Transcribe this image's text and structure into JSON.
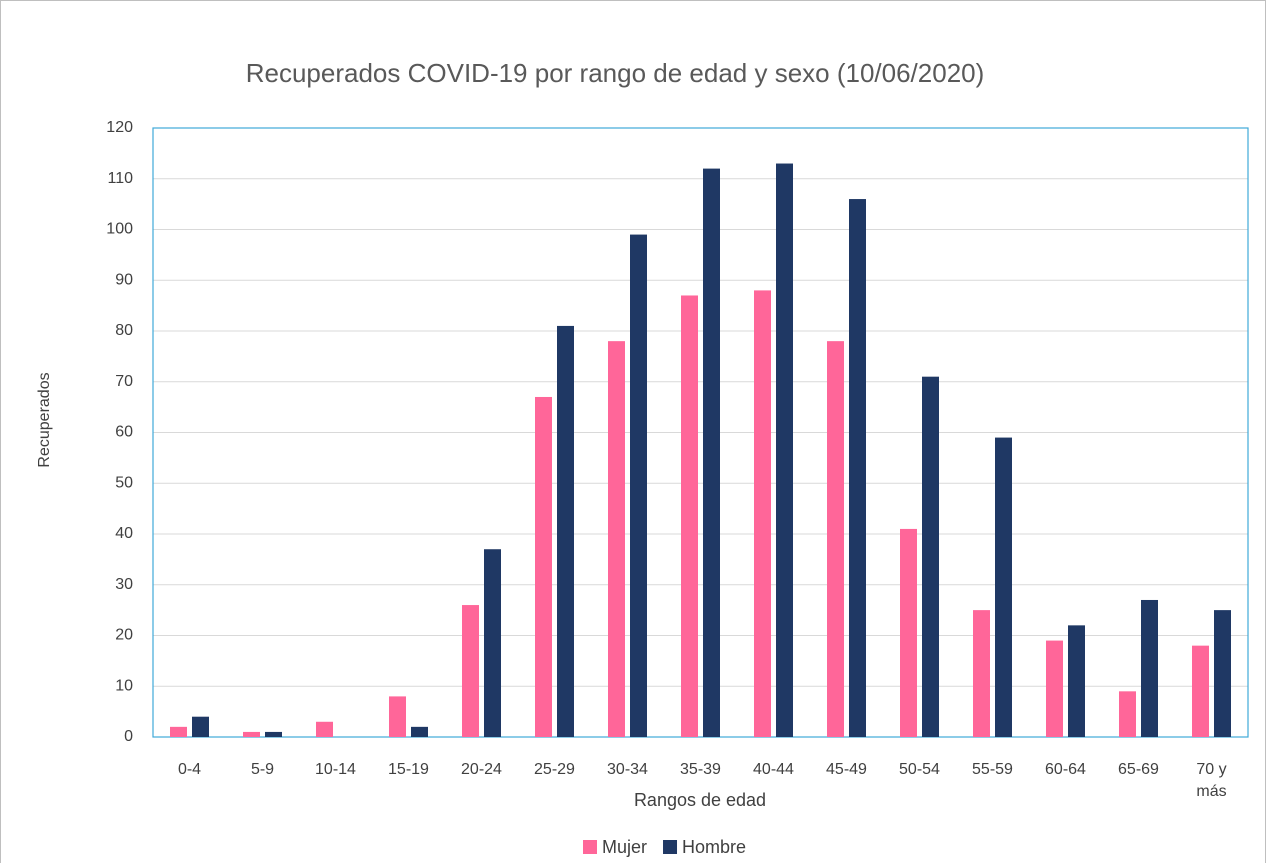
{
  "chart_data": {
    "type": "bar",
    "title": "Recuperados COVID-19 por rango de edad y sexo (10/06/2020)",
    "x_label": "Rangos de edad",
    "y_label": "Recuperados",
    "categories": [
      "0-4",
      "5-9",
      "10-14",
      "15-19",
      "20-24",
      "25-29",
      "30-34",
      "35-39",
      "40-44",
      "45-49",
      "50-54",
      "55-59",
      "60-64",
      "65-69",
      "70 y más"
    ],
    "series": [
      {
        "name": "Mujer",
        "color": "#ff6699",
        "values": [
          2,
          1,
          3,
          8,
          26,
          67,
          78,
          87,
          88,
          78,
          41,
          25,
          19,
          9,
          18
        ]
      },
      {
        "name": "Hombre",
        "color": "#1f3864",
        "values": [
          4,
          1,
          0,
          2,
          37,
          81,
          99,
          112,
          113,
          106,
          71,
          59,
          22,
          27,
          25
        ]
      }
    ],
    "ylim": [
      0,
      120
    ],
    "yticks": [
      0,
      10,
      20,
      30,
      40,
      50,
      60,
      70,
      80,
      90,
      100,
      110,
      120
    ],
    "grid": true,
    "legend": "bottom"
  }
}
